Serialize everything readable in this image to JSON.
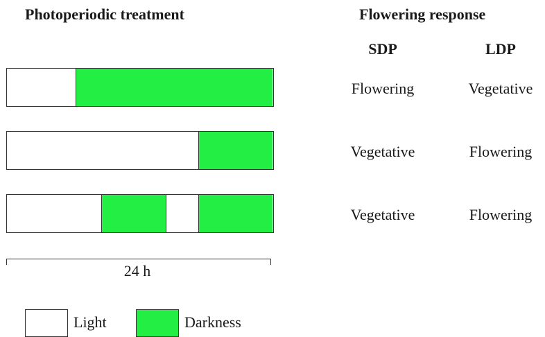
{
  "left_title": "Photoperiodic treatment",
  "right_title": "Flowering response",
  "columns": {
    "sdp": "SDP",
    "ldp": "LDP"
  },
  "colors": {
    "light": "#ffffff",
    "darkness": "#22ee44",
    "border": "#333333"
  },
  "rows": [
    {
      "sdp": "Flowering",
      "ldp": "Vegetative",
      "dark_hours": [
        [
          6.2,
          24
        ]
      ]
    },
    {
      "sdp": "Vegetative",
      "ldp": "Flowering",
      "dark_hours": [
        [
          17.3,
          24
        ]
      ]
    },
    {
      "sdp": "Vegetative",
      "ldp": "Flowering",
      "dark_hours": [
        [
          8.5,
          14.4
        ],
        [
          17.3,
          24
        ]
      ]
    }
  ],
  "scale_label": "24 h",
  "legend": {
    "light": "Light",
    "darkness": "Darkness"
  }
}
